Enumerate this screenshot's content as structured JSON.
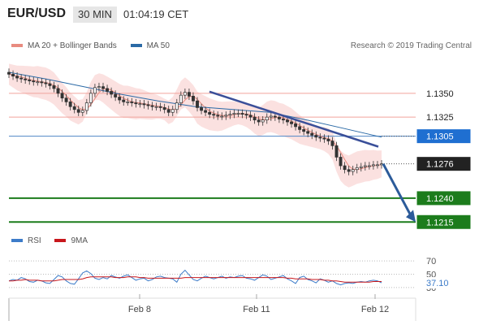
{
  "header": {
    "symbol": "EUR/USD",
    "timeframe": "30 MIN",
    "clock": "01:04:19 CET"
  },
  "legend": {
    "ma20": "MA 20 + Bollinger Bands",
    "ma50": "MA 50",
    "rsi": "RSI",
    "rsi_ma": "9MA",
    "credit": "Research © 2019 Trading Central"
  },
  "colors": {
    "ma20": "#e88b80",
    "bollinger": "#f7c9c7",
    "ma50": "#2b6aa6",
    "trendline": "#3a4f99",
    "support": "#1c7c1c",
    "resistance_line": "#f0a39c",
    "ma50_label": "#1f6fd1",
    "current_label": "#222222",
    "arrow": "#2c5b9a",
    "rsi": "#3d7cc9",
    "rsi_ma": "#c8171c"
  },
  "chart_data": [
    {
      "type": "line",
      "name": "EUR/USD 30 MIN price",
      "x_labels": [
        "Feb 8",
        "Feb 11",
        "Feb 12"
      ],
      "ylim": [
        1.1205,
        1.1395
      ],
      "levels": [
        {
          "value": 1.135,
          "label": "1.1350",
          "kind": "resistance"
        },
        {
          "value": 1.1325,
          "label": "1.1325",
          "kind": "resistance"
        },
        {
          "value": 1.1305,
          "label": "1.1305",
          "kind": "ma50"
        },
        {
          "value": 1.1276,
          "label": "1.1276",
          "kind": "current"
        },
        {
          "value": 1.124,
          "label": "1.1240",
          "kind": "support"
        },
        {
          "value": 1.1215,
          "label": "1.1215",
          "kind": "support"
        }
      ],
      "close": [
        1.137,
        1.1368,
        1.1366,
        1.1365,
        1.1364,
        1.1363,
        1.1362,
        1.1362,
        1.1361,
        1.136,
        1.1358,
        1.1355,
        1.135,
        1.1345,
        1.1341,
        1.1336,
        1.1333,
        1.133,
        1.1332,
        1.134,
        1.135,
        1.1356,
        1.1357,
        1.1355,
        1.1352,
        1.1349,
        1.1346,
        1.1343,
        1.1341,
        1.1341,
        1.134,
        1.1339,
        1.1339,
        1.1338,
        1.1337,
        1.1336,
        1.1336,
        1.1335,
        1.1333,
        1.133,
        1.1333,
        1.134,
        1.1348,
        1.1351,
        1.1347,
        1.1342,
        1.1335,
        1.1332,
        1.133,
        1.1328,
        1.1327,
        1.1326,
        1.1326,
        1.1327,
        1.1328,
        1.1329,
        1.1329,
        1.1328,
        1.1327,
        1.1325,
        1.1322,
        1.132,
        1.1322,
        1.1325,
        1.1326,
        1.1325,
        1.1323,
        1.1322,
        1.132,
        1.1318,
        1.1315,
        1.1312,
        1.131,
        1.1308,
        1.1306,
        1.1304,
        1.1303,
        1.1302,
        1.13,
        1.1295,
        1.1283,
        1.1274,
        1.127,
        1.1268,
        1.127,
        1.1272,
        1.1273,
        1.1274,
        1.1274,
        1.1275,
        1.1275,
        1.1276
      ],
      "ma50": [
        1.1372,
        1.1365,
        1.1357,
        1.1349,
        1.1342,
        1.1336,
        1.1333,
        1.133,
        1.1322,
        1.1313,
        1.1304
      ],
      "trendline": [
        {
          "t": 62,
          "price": 1.135
        },
        {
          "t": 112,
          "price": 1.13
        }
      ],
      "projection": {
        "from": 1.1276,
        "to": 1.1215
      }
    },
    {
      "type": "line",
      "name": "RSI",
      "ylim": [
        20,
        80
      ],
      "ticks": [
        "70",
        "50",
        "30"
      ],
      "current_label": "37.10",
      "rsi": [
        40,
        42,
        41,
        45,
        43,
        39,
        38,
        41,
        40,
        37,
        36,
        42,
        48,
        46,
        40,
        36,
        35,
        43,
        52,
        55,
        51,
        44,
        42,
        45,
        43,
        48,
        46,
        44,
        47,
        49,
        45,
        41,
        43,
        44,
        40,
        42,
        46,
        47,
        45,
        44,
        43,
        38,
        50,
        56,
        49,
        42,
        40,
        44,
        47,
        45,
        43,
        45,
        47,
        44,
        46,
        45,
        47,
        48,
        44,
        43,
        41,
        45,
        49,
        47,
        42,
        44,
        46,
        48,
        43,
        40,
        36,
        45,
        47,
        42,
        40,
        37,
        43,
        41,
        38,
        40,
        36,
        34,
        36,
        37,
        36,
        38,
        39,
        38,
        40,
        41,
        40,
        37.1
      ],
      "rsi_ma": [
        40,
        40,
        41,
        41,
        42,
        41,
        41,
        41,
        40,
        40,
        40,
        40,
        41,
        42,
        42,
        42,
        42,
        42,
        43,
        45,
        46,
        46,
        46,
        46,
        46,
        46,
        45,
        45,
        45,
        46,
        46,
        46,
        45,
        45,
        44,
        44,
        44,
        44,
        44,
        44,
        44,
        44,
        44,
        45,
        45,
        45,
        45,
        45,
        45,
        45,
        45,
        45,
        45,
        45,
        45,
        45,
        45,
        45,
        45,
        45,
        45,
        45,
        45,
        45,
        45,
        45,
        45,
        45,
        44,
        44,
        43,
        43,
        43,
        43,
        42,
        42,
        42,
        41,
        41,
        40,
        40,
        39,
        38,
        38,
        38,
        38,
        38,
        38,
        38,
        39,
        39,
        39
      ]
    }
  ]
}
